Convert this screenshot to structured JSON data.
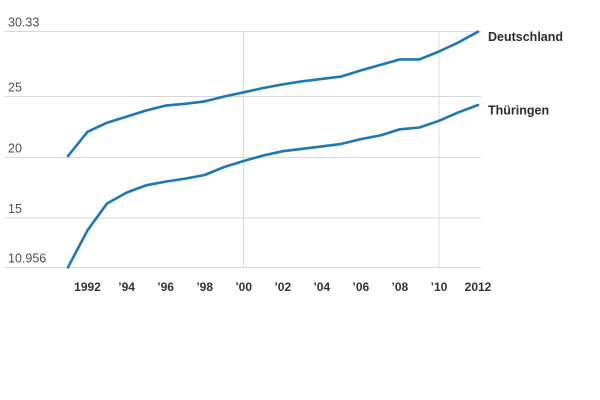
{
  "chart_data": {
    "type": "line",
    "title": "",
    "x": [
      1991,
      1992,
      1993,
      1994,
      1995,
      1996,
      1997,
      1998,
      1999,
      2000,
      2001,
      2002,
      2003,
      2004,
      2005,
      2006,
      2007,
      2008,
      2009,
      2010,
      2011,
      2012
    ],
    "series": [
      {
        "name": "Deutschland",
        "slug": "deutschland",
        "color": "#1f77b4",
        "values": [
          20.1,
          22.1,
          22.85,
          23.35,
          23.85,
          24.25,
          24.4,
          24.6,
          25.0,
          25.35,
          25.7,
          26.0,
          26.25,
          26.45,
          26.65,
          27.15,
          27.6,
          28.05,
          28.05,
          28.7,
          29.45,
          30.33
        ]
      },
      {
        "name": "Thüringen",
        "slug": "thueringen",
        "color": "#1f77b4",
        "values": [
          10.956,
          14.0,
          16.2,
          17.1,
          17.7,
          18.0,
          18.25,
          18.55,
          19.2,
          19.7,
          20.15,
          20.5,
          20.7,
          20.9,
          21.1,
          21.5,
          21.8,
          22.3,
          22.45,
          23.0,
          23.7,
          24.3
        ]
      }
    ],
    "y_axis": {
      "min": 10.956,
      "max": 30.33,
      "tick_values": [
        30.33,
        25,
        20,
        15,
        10.956
      ],
      "tick_labels": [
        "30.33",
        "25",
        "20",
        "15",
        "10.956"
      ]
    },
    "x_axis": {
      "tick_years": [
        1992,
        1994,
        1996,
        1998,
        2000,
        2002,
        2004,
        2006,
        2008,
        2010,
        2012
      ],
      "tick_labels": [
        "1992",
        "’94",
        "’96",
        "’98",
        "’00",
        "’02",
        "’04",
        "’06",
        "’08",
        "’10",
        "2012"
      ]
    },
    "vertical_gridline_years": [
      2000,
      2010
    ],
    "grid": true,
    "legend_position": "labels-at-line-end"
  },
  "styles": {
    "line_color": "#1f77b4",
    "grid_color": "#d8d8d8",
    "y_label_color": "#4f4f4f",
    "x_label_color": "#333333",
    "series_label_color": "#2d2d2d",
    "background": "#ffffff"
  }
}
